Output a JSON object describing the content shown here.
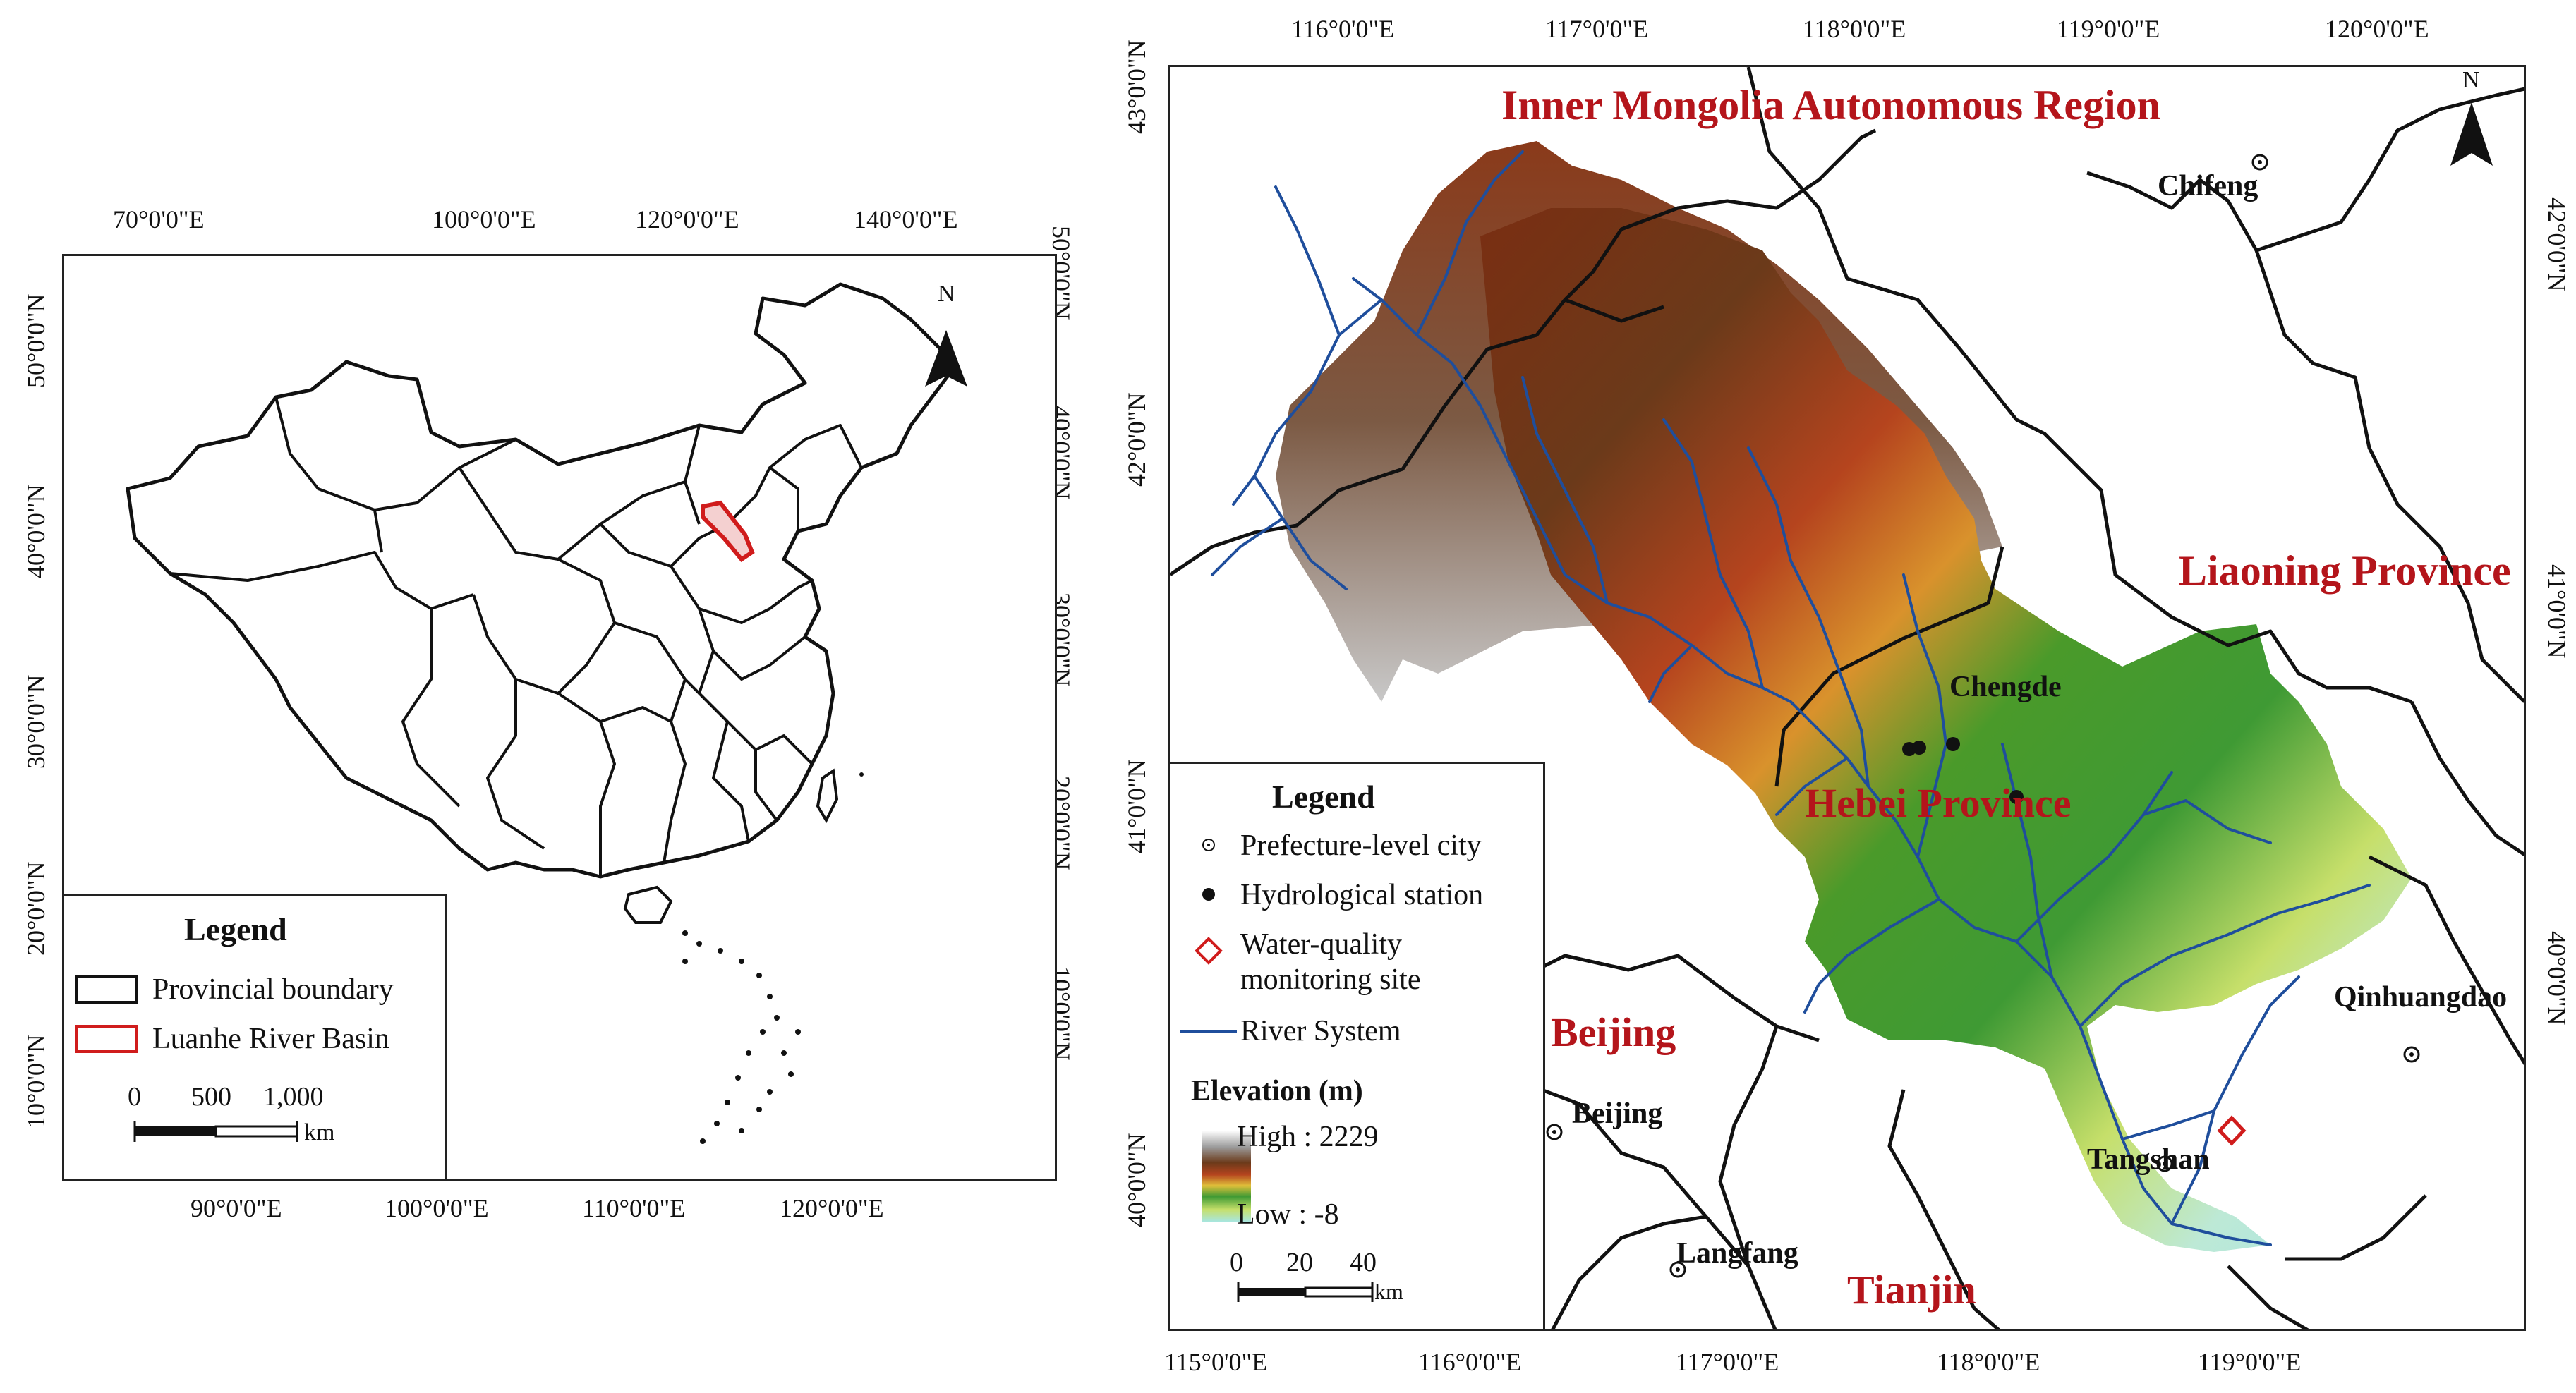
{
  "left_map": {
    "top_coords": [
      "70°0'0\"E",
      "100°0'0\"E",
      "120°0'0\"E",
      "140°0'0\"E"
    ],
    "bottom_coords": [
      "90°0'0\"E",
      "100°0'0\"E",
      "110°0'0\"E",
      "120°0'0\"E"
    ],
    "left_coords": [
      "50°0'0\"N",
      "40°0'0\"N",
      "30°0'0\"N",
      "20°0'0\"N",
      "10°0'0\"N"
    ],
    "right_coords": [
      "50°0'0\"N",
      "40°0'0\"N",
      "30°0'0\"N",
      "20°0'0\"N",
      "10°0'0\"N"
    ],
    "north": "N",
    "legend": {
      "title": "Legend",
      "items": [
        "Provincial boundary",
        "Luanhe River Basin"
      ],
      "scale_ticks": [
        "0",
        "500",
        "1,000"
      ],
      "scale_unit": "km"
    }
  },
  "right_map": {
    "top_coords": [
      "116°0'0\"E",
      "117°0'0\"E",
      "118°0'0\"E",
      "119°0'0\"E",
      "120°0'0\"E"
    ],
    "bottom_coords": [
      "115°0'0\"E",
      "116°0'0\"E",
      "117°0'0\"E",
      "118°0'0\"E",
      "119°0'0\"E"
    ],
    "left_coords": [
      "43°0'0\"N",
      "42°0'0\"N",
      "41°0'0\"N",
      "40°0'0\"N"
    ],
    "right_coords": [
      "42°0'0\"N",
      "41°0'0\"N",
      "40°0'0\"N"
    ],
    "north": "N",
    "regions": {
      "inner_mongolia": "Inner Mongolia Autonomous Region",
      "liaoning": "Liaoning Province",
      "hebei": "Hebei Province",
      "beijing": "Beijing",
      "tianjin": "Tianjin"
    },
    "cities": {
      "chifeng": "Chifeng",
      "chengde": "Chengde",
      "qinhuangdao": "Qinhuangdao",
      "tangshan": "Tangshan",
      "beijing": "Beijing",
      "langfang": "Langfang"
    },
    "legend": {
      "title": "Legend",
      "items": [
        "Prefecture-level city",
        "Hydrological station",
        "Water-quality",
        "monitoring site",
        "River System"
      ],
      "elevation_title": "Elevation (m)",
      "high": "High : 2229",
      "low": "Low : -8",
      "scale_ticks": [
        "0",
        "20",
        "40"
      ],
      "scale_unit": "km"
    },
    "colors": {
      "region_label": "#b4151b",
      "river": "#1f4e9c",
      "monitoring_site": "#d01c1c"
    }
  }
}
